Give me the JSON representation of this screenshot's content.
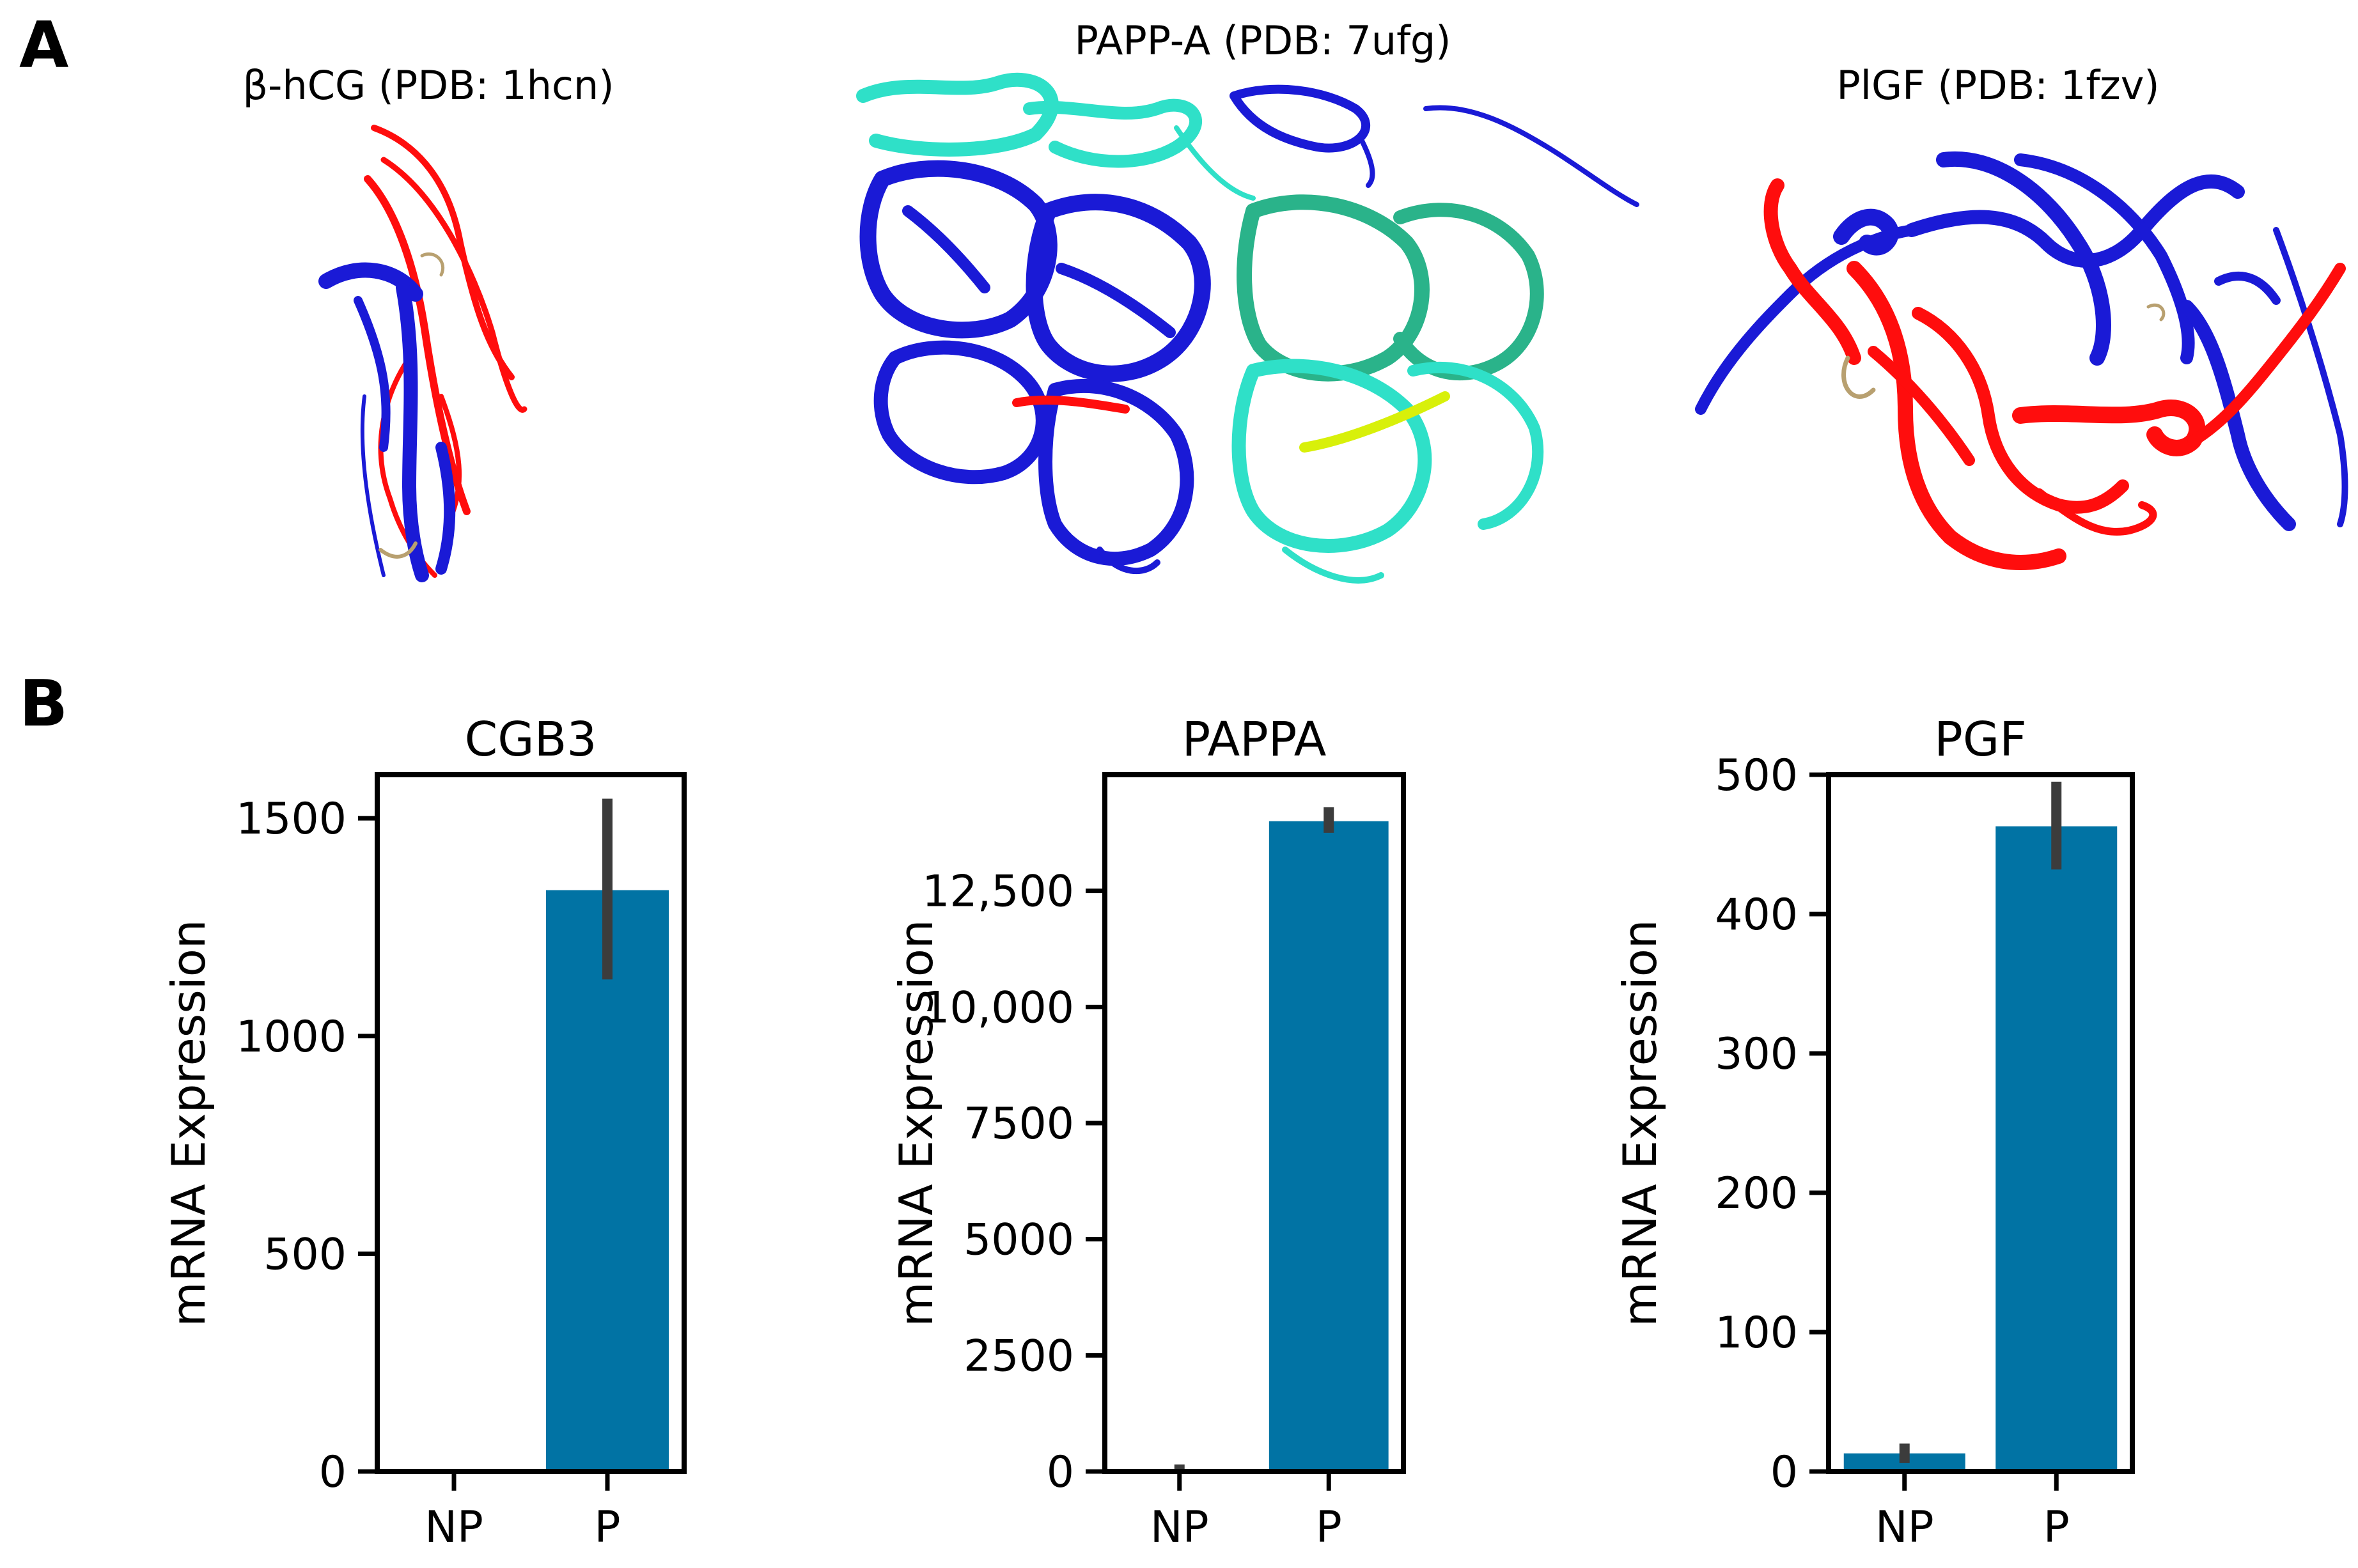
{
  "panel_a": {
    "label": "A",
    "structures": [
      {
        "title": "β-hCG (PDB: 1hcn)",
        "icon": "protein-ribbon-red-blue"
      },
      {
        "title": "PAPP-A (PDB: 7ufg)",
        "icon": "protein-ribbon-blue-cyan-green"
      },
      {
        "title": "PlGF (PDB: 1fzv)",
        "icon": "protein-ribbon-red-blue"
      }
    ]
  },
  "panel_b": {
    "label": "B"
  },
  "colors": {
    "bar": "#0173a4",
    "error": "#3c3c3c",
    "red": "#ff0d0d",
    "blue": "#1a1ad6",
    "cyan": "#2fe0c8",
    "green": "#2ab38a",
    "yellow": "#d8f00a"
  },
  "chart_data": [
    {
      "type": "bar",
      "title": "CGB3",
      "ylabel": "mRNA Expression",
      "categories": [
        "NP",
        "P"
      ],
      "values": [
        0,
        1335
      ],
      "errors": [
        [
          0,
          0
        ],
        [
          1130,
          1545
        ]
      ],
      "ylim": [
        0,
        1600
      ],
      "yticks": [
        0,
        500,
        1000,
        1500
      ],
      "ytick_labels": [
        "0",
        "500",
        "1000",
        "1500"
      ]
    },
    {
      "type": "bar",
      "title": "PAPPA",
      "ylabel": "mRNA Expression",
      "categories": [
        "NP",
        "P"
      ],
      "values": [
        20,
        14000
      ],
      "errors": [
        [
          0,
          150
        ],
        [
          13750,
          14300
        ]
      ],
      "ylim": [
        0,
        15000
      ],
      "yticks": [
        0,
        2500,
        5000,
        7500,
        10000,
        12500
      ],
      "ytick_labels": [
        "0",
        "2500",
        "5000",
        "7500",
        "10,000",
        "12,500"
      ]
    },
    {
      "type": "bar",
      "title": "PGF",
      "ylabel": "mRNA Expression",
      "categories": [
        "NP",
        "P"
      ],
      "values": [
        13,
        463
      ],
      "errors": [
        [
          6,
          20
        ],
        [
          432,
          495
        ]
      ],
      "ylim": [
        0,
        500
      ],
      "yticks": [
        0,
        100,
        200,
        300,
        400,
        500
      ],
      "ytick_labels": [
        "0",
        "100",
        "200",
        "300",
        "400",
        "500"
      ]
    }
  ]
}
